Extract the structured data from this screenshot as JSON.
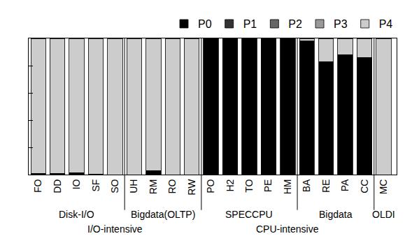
{
  "chart_data": {
    "type": "bar",
    "stacked": true,
    "grid": false,
    "tick_labels": "x",
    "legend": "top right",
    "categories": [
      "FO",
      "DD",
      "IO",
      "SF",
      "SO",
      "UH",
      "RM",
      "RO",
      "RW",
      "PO",
      "H2",
      "TO",
      "PE",
      "HM",
      "BA",
      "RE",
      "PA",
      "CC",
      "MC"
    ],
    "ylim": [
      0,
      100
    ],
    "yticks": [
      0,
      20,
      40,
      60,
      80,
      100
    ],
    "series": [
      {
        "name": "P0",
        "color": "#000000",
        "values": [
          1,
          1,
          1.5,
          0.5,
          0,
          0,
          3,
          0,
          0,
          100,
          100,
          100,
          100,
          100,
          98,
          83,
          88,
          86,
          0
        ]
      },
      {
        "name": "P1",
        "color": "#333333",
        "values": [
          0,
          0,
          0,
          0,
          0,
          0,
          0,
          0,
          0,
          0,
          0,
          0,
          0,
          0,
          0,
          0,
          0,
          0,
          0
        ]
      },
      {
        "name": "P2",
        "color": "#666666",
        "values": [
          0,
          0,
          0,
          0,
          0,
          0,
          0,
          0,
          0,
          0,
          0,
          0,
          0,
          0,
          0,
          0,
          0,
          0,
          0
        ]
      },
      {
        "name": "P3",
        "color": "#999999",
        "values": [
          0,
          0,
          0,
          0,
          0,
          0,
          0,
          0,
          0,
          0,
          0,
          0,
          0,
          0,
          0,
          0,
          0,
          0,
          0
        ]
      },
      {
        "name": "P4",
        "color": "#cccccc",
        "values": [
          99,
          99,
          98.5,
          99.5,
          100,
          100,
          97,
          100,
          100,
          0,
          0,
          0,
          0,
          0,
          2,
          17,
          12,
          14,
          100
        ]
      }
    ],
    "groups": [
      {
        "label": "Disk-I/O",
        "categories": [
          "FO",
          "DD",
          "IO",
          "SF",
          "SO"
        ]
      },
      {
        "label": "Bigdata(OLTP)",
        "categories": [
          "UH",
          "RM",
          "RO",
          "RW"
        ]
      },
      {
        "label": "SPECCPU",
        "categories": [
          "PO",
          "H2",
          "TO",
          "PE",
          "HM"
        ]
      },
      {
        "label": "Bigdata",
        "categories": [
          "BA",
          "RE",
          "PA",
          "CC"
        ]
      },
      {
        "label": "OLDI",
        "categories": [
          "MC"
        ]
      }
    ],
    "supergroups": [
      {
        "label": "I/O-intensive",
        "categories": [
          "FO",
          "DD",
          "IO",
          "SF",
          "SO",
          "UH",
          "RM",
          "RO",
          "RW"
        ]
      },
      {
        "label": "CPU-intensive",
        "categories": [
          "PO",
          "H2",
          "TO",
          "PE",
          "HM",
          "BA",
          "RE",
          "PA",
          "CC"
        ]
      },
      {
        "label": "",
        "categories": [
          "MC"
        ]
      }
    ]
  }
}
